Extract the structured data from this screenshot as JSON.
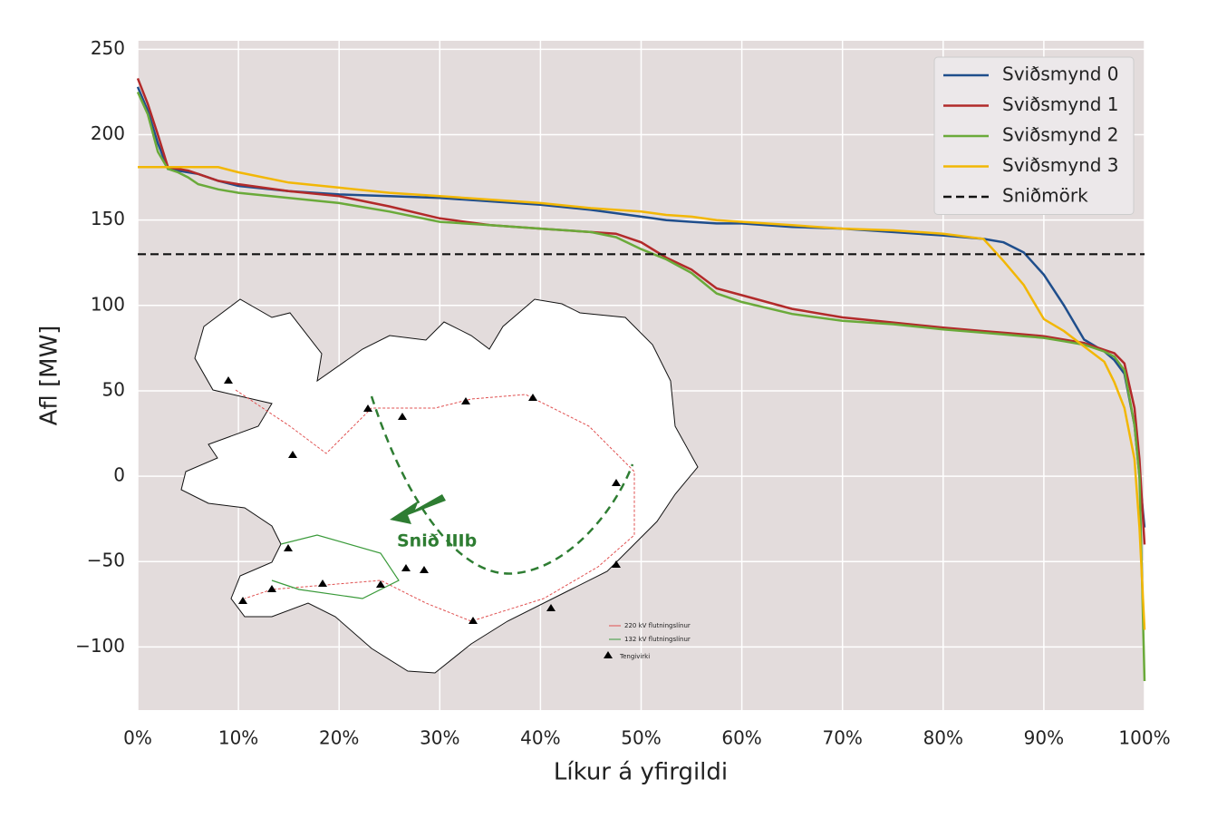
{
  "chart_data": {
    "type": "line",
    "xlabel": "Líkur á yfirgildi",
    "ylabel": "Afl [MW]",
    "x": [
      0,
      1,
      2,
      3,
      4,
      5,
      6,
      8,
      10,
      15,
      20,
      25,
      30,
      35,
      40,
      45,
      47.5,
      50,
      52.5,
      55,
      57.5,
      60,
      65,
      70,
      75,
      80,
      84,
      86,
      88,
      90,
      92,
      94,
      96,
      97,
      98,
      99,
      99.5,
      100
    ],
    "series": [
      {
        "name": "Sviðsmynd 0",
        "color": "#1f4e8c",
        "values": [
          228,
          214,
          195,
          180,
          179,
          178,
          177,
          173,
          170,
          167,
          165,
          164,
          163,
          161,
          159,
          156,
          154,
          152,
          150,
          149,
          148,
          148,
          146,
          145,
          143,
          141,
          139,
          137,
          131,
          118,
          100,
          80,
          73,
          68,
          60,
          30,
          0,
          -30
        ]
      },
      {
        "name": "Sviðsmynd 1",
        "color": "#b22a2a",
        "values": [
          233,
          218,
          200,
          181,
          180,
          179,
          177,
          173,
          171,
          167,
          164,
          158,
          151,
          147,
          145,
          143,
          142,
          137,
          128,
          121,
          110,
          106,
          98,
          93,
          90,
          87,
          85,
          84,
          83,
          82,
          80,
          78,
          74,
          72,
          66,
          40,
          10,
          -40
        ]
      },
      {
        "name": "Sviðsmynd 2",
        "color": "#6aaa3a",
        "values": [
          225,
          212,
          190,
          180,
          178,
          175,
          171,
          168,
          166,
          163,
          160,
          155,
          149,
          147,
          145,
          143,
          140,
          133,
          127,
          119,
          107,
          102,
          95,
          91,
          89,
          86,
          84,
          83,
          82,
          81,
          79,
          77,
          73,
          70,
          62,
          30,
          0,
          -120
        ]
      },
      {
        "name": "Sviðsmynd 3",
        "color": "#f2b705",
        "values": [
          181,
          181,
          181,
          181,
          181,
          181,
          181,
          181,
          178,
          172,
          169,
          166,
          164,
          162,
          160,
          157,
          156,
          155,
          153,
          152,
          150,
          149,
          147,
          145,
          144,
          142,
          139,
          126,
          112,
          92,
          85,
          76,
          67,
          55,
          40,
          10,
          -30,
          -90
        ]
      }
    ],
    "threshold": {
      "name": "Sniðmörk",
      "value": 130,
      "color": "#111111"
    },
    "xlim": [
      0,
      100
    ],
    "ylim": [
      -137,
      255
    ],
    "xticks": [
      {
        "value": 0,
        "label": "0%"
      },
      {
        "value": 10,
        "label": "10%"
      },
      {
        "value": 20,
        "label": "20%"
      },
      {
        "value": 30,
        "label": "30%"
      },
      {
        "value": 40,
        "label": "40%"
      },
      {
        "value": 50,
        "label": "50%"
      },
      {
        "value": 60,
        "label": "60%"
      },
      {
        "value": 70,
        "label": "70%"
      },
      {
        "value": 80,
        "label": "80%"
      },
      {
        "value": 90,
        "label": "90%"
      },
      {
        "value": 100,
        "label": "100%"
      }
    ],
    "yticks": [
      {
        "value": -100,
        "label": "−100"
      },
      {
        "value": -50,
        "label": "−50"
      },
      0,
      50,
      100,
      150,
      200,
      250
    ],
    "grid": true,
    "legend": "upper right",
    "map": {
      "label": "Snið IIIb",
      "legend": [
        "220 kV flutningslínur",
        "132 kV flutningslínur",
        "Tengivirki"
      ]
    }
  }
}
